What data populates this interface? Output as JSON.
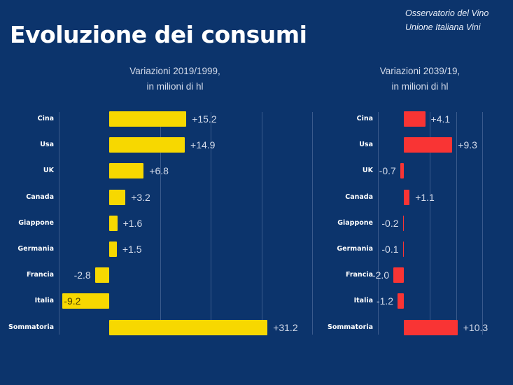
{
  "header": {
    "title": "Evoluzione dei consumi",
    "source_line1": "Osservatorio del Vino",
    "source_line2": "Unione Italiana Vini"
  },
  "chart_data": [
    {
      "type": "bar",
      "orientation": "horizontal",
      "title_line1": "Variazioni 2019/1999,",
      "title_line2": "in milioni di hl",
      "categories": [
        "Cina",
        "Usa",
        "UK",
        "Canada",
        "Giappone",
        "Germania",
        "Francia",
        "Italia",
        "Sommatoria"
      ],
      "values": [
        15.2,
        14.9,
        6.8,
        3.2,
        1.6,
        1.5,
        -2.8,
        -9.2,
        31.2
      ],
      "labels": [
        "+15.2",
        "+14.9",
        "+6.8",
        "+3.2",
        "+1.6",
        "+1.5",
        "-2.8",
        "-9.2",
        "+31.2"
      ],
      "xlim": [
        -10,
        38
      ],
      "gridlines": [
        -10,
        10,
        20,
        30
      ],
      "grid": true,
      "color": "#f7d800"
    },
    {
      "type": "bar",
      "orientation": "horizontal",
      "title_line1": "Variazioni 2039/19,",
      "title_line2": "in milioni di hl",
      "categories": [
        "Cina",
        "Usa",
        "UK",
        "Canada",
        "Giappone",
        "Germania",
        "Francia",
        "Italia",
        "Sommatoria"
      ],
      "values": [
        4.1,
        9.3,
        -0.7,
        1.1,
        -0.2,
        -0.1,
        -2.0,
        -1.2,
        10.3
      ],
      "labels": [
        "+4.1",
        "+9.3",
        "-0.7",
        "+1.1",
        "-0.2",
        "-0.1",
        "-2.0",
        "-1.2",
        "+10.3"
      ],
      "xlim": [
        -5,
        15
      ],
      "gridlines": [
        -5,
        5,
        10,
        15
      ],
      "grid": true,
      "color": "#f93434"
    }
  ]
}
